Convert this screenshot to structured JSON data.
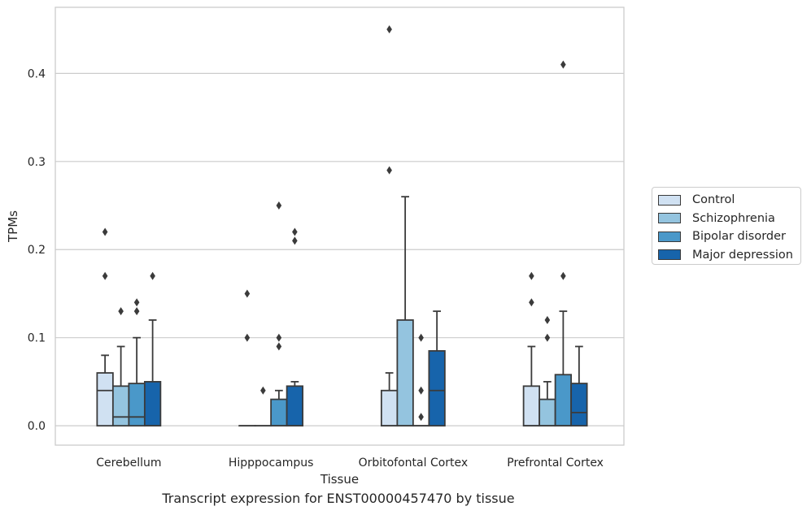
{
  "chart_data": {
    "type": "box",
    "title": "",
    "caption": "Transcript expression for ENST00000457470 by tissue",
    "xlabel": "Tissue",
    "ylabel": "TPMs",
    "ylim": [
      -0.022,
      0.475
    ],
    "yticks": [
      "0.0",
      "0.1",
      "0.2",
      "0.3",
      "0.4"
    ],
    "grid": "horizontal",
    "legend_position": "right",
    "categories": [
      "Cerebellum",
      "Hipppocampus",
      "Orbitofontal Cortex",
      "Prefrontal Cortex"
    ],
    "series": [
      {
        "name": "Control",
        "color": "#d0e1f2",
        "boxes": [
          {
            "q1": 0.0,
            "median": 0.04,
            "q3": 0.06,
            "whislo": 0.0,
            "whishi": 0.08,
            "fliers": [
              0.17,
              0.22
            ]
          },
          {
            "q1": 0.0,
            "median": 0.0,
            "q3": 0.0,
            "whislo": 0.0,
            "whishi": 0.0,
            "fliers": [
              0.1,
              0.15
            ]
          },
          {
            "q1": 0.0,
            "median": 0.0,
            "q3": 0.04,
            "whislo": 0.0,
            "whishi": 0.06,
            "fliers": [
              0.29,
              0.45
            ]
          },
          {
            "q1": 0.0,
            "median": 0.0,
            "q3": 0.045,
            "whislo": 0.0,
            "whishi": 0.09,
            "fliers": [
              0.14,
              0.17
            ]
          }
        ]
      },
      {
        "name": "Schizophrenia",
        "color": "#94c4df",
        "boxes": [
          {
            "q1": 0.0,
            "median": 0.01,
            "q3": 0.045,
            "whislo": 0.0,
            "whishi": 0.09,
            "fliers": [
              0.13
            ]
          },
          {
            "q1": 0.0,
            "median": 0.0,
            "q3": 0.0,
            "whislo": 0.0,
            "whishi": 0.0,
            "fliers": [
              0.04
            ]
          },
          {
            "q1": 0.0,
            "median": 0.0,
            "q3": 0.12,
            "whislo": 0.0,
            "whishi": 0.26,
            "fliers": []
          },
          {
            "q1": 0.0,
            "median": 0.0,
            "q3": 0.03,
            "whislo": 0.0,
            "whishi": 0.05,
            "fliers": [
              0.1,
              0.12
            ]
          }
        ]
      },
      {
        "name": "Bipolar disorder",
        "color": "#4a98c9",
        "boxes": [
          {
            "q1": 0.0,
            "median": 0.01,
            "q3": 0.048,
            "whislo": 0.0,
            "whishi": 0.1,
            "fliers": [
              0.13,
              0.14
            ]
          },
          {
            "q1": 0.0,
            "median": 0.0,
            "q3": 0.03,
            "whislo": 0.0,
            "whishi": 0.04,
            "fliers": [
              0.09,
              0.1,
              0.25
            ]
          },
          {
            "q1": 0.0,
            "median": 0.0,
            "q3": 0.0,
            "whislo": 0.0,
            "whishi": 0.0,
            "fliers": [
              0.01,
              0.04,
              0.1
            ]
          },
          {
            "q1": 0.0,
            "median": 0.0,
            "q3": 0.058,
            "whislo": 0.0,
            "whishi": 0.13,
            "fliers": [
              0.17,
              0.41
            ]
          }
        ]
      },
      {
        "name": "Major depression",
        "color": "#1764ab",
        "boxes": [
          {
            "q1": 0.0,
            "median": 0.0,
            "q3": 0.05,
            "whislo": 0.0,
            "whishi": 0.12,
            "fliers": [
              0.17
            ]
          },
          {
            "q1": 0.0,
            "median": 0.0,
            "q3": 0.045,
            "whislo": 0.0,
            "whishi": 0.05,
            "fliers": [
              0.21,
              0.22
            ]
          },
          {
            "q1": 0.0,
            "median": 0.04,
            "q3": 0.085,
            "whislo": 0.0,
            "whishi": 0.13,
            "fliers": []
          },
          {
            "q1": 0.0,
            "median": 0.015,
            "q3": 0.048,
            "whislo": 0.0,
            "whishi": 0.09,
            "fliers": []
          }
        ]
      }
    ]
  }
}
